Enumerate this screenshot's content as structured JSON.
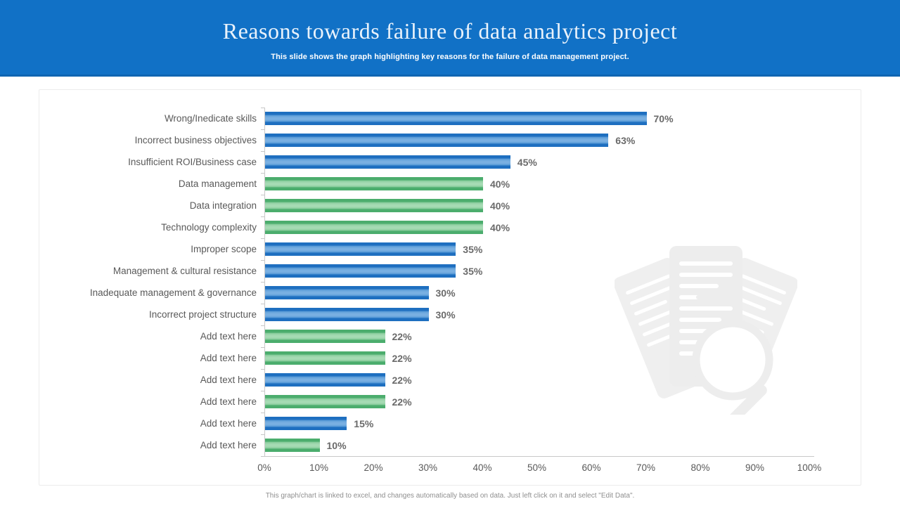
{
  "header": {
    "title": "Reasons towards failure of data analytics project",
    "subtitle": "This slide shows the graph highlighting key reasons for the failure of data management project.",
    "background_color": "#1171C6"
  },
  "chart_data": {
    "type": "bar",
    "orientation": "horizontal",
    "title": "",
    "xlabel": "",
    "ylabel": "",
    "xlim": [
      0,
      100
    ],
    "grid": false,
    "legend": "none",
    "categories": [
      "Wrong/Inedicate skills",
      "Incorrect business objectives",
      "Insufficient ROI/Business case",
      "Data management",
      "Data integration",
      "Technology complexity",
      "Improper scope",
      "Management & cultural resistance",
      "Inadequate management & governance",
      "Incorrect project structure",
      "Add text here",
      "Add text here",
      "Add text here",
      "Add text here",
      "Add text here",
      "Add text here"
    ],
    "values": [
      70,
      63,
      45,
      40,
      40,
      40,
      35,
      35,
      30,
      30,
      22,
      22,
      22,
      22,
      15,
      10
    ],
    "value_labels": [
      "70%",
      "63%",
      "45%",
      "40%",
      "40%",
      "40%",
      "35%",
      "35%",
      "30%",
      "30%",
      "22%",
      "22%",
      "22%",
      "22%",
      "15%",
      "10%"
    ],
    "series_colors": [
      "blue",
      "blue",
      "blue",
      "green",
      "green",
      "green",
      "blue",
      "blue",
      "blue",
      "blue",
      "green",
      "green",
      "blue",
      "green",
      "blue",
      "green"
    ],
    "color_palette": {
      "blue": "#1E6FC0",
      "green": "#4BAD6D"
    },
    "x_ticks": [
      "0%",
      "10%",
      "20%",
      "30%",
      "40%",
      "50%",
      "60%",
      "70%",
      "80%",
      "90%",
      "100%"
    ]
  },
  "watermark": {
    "description": "documents-with-magnifier-watermark"
  },
  "footer": {
    "note": "This graph/chart is linked to excel, and changes automatically based on data. Just left click on it and select \"Edit Data\"."
  }
}
